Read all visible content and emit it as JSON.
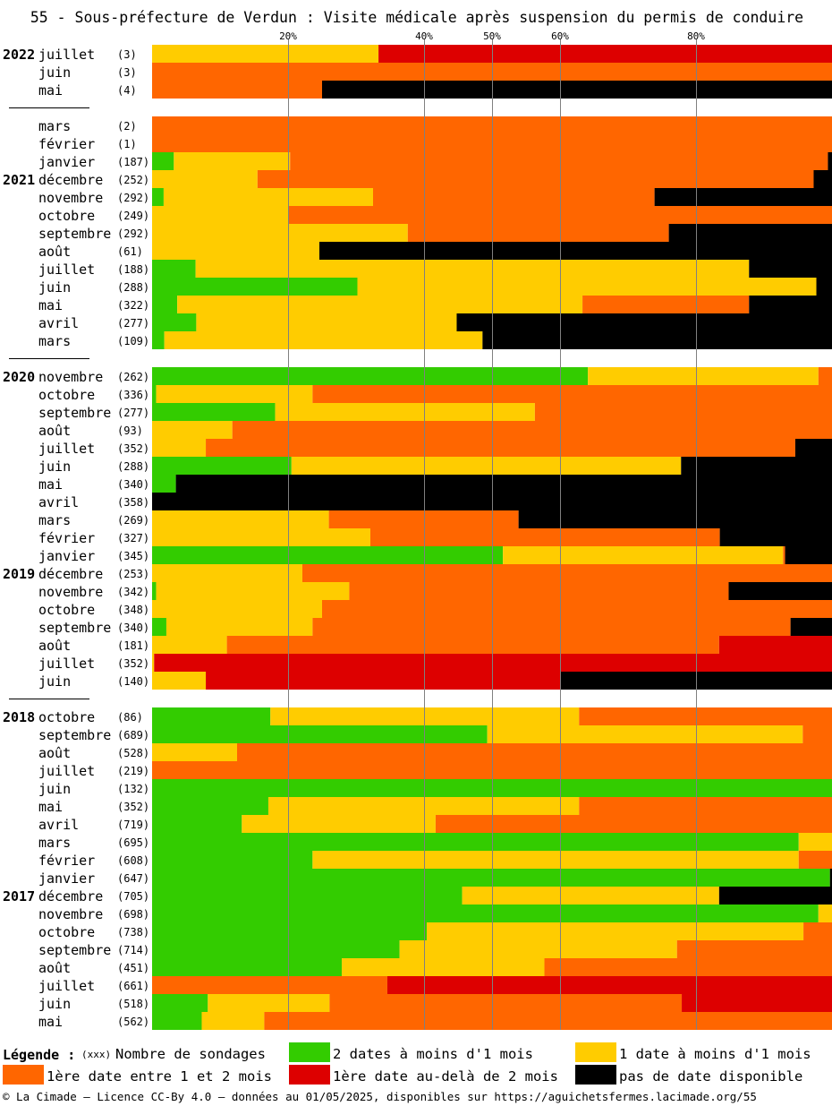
{
  "chart_data": {
    "type": "bar",
    "title": "55 - Sous-préfecture de Verdun : Visite médicale après suspension du permis de conduire",
    "orientation": "horizontal-stacked-100",
    "xlim": [
      0,
      100
    ],
    "xticks": [
      20,
      40,
      50,
      60,
      80
    ],
    "xtick_labels": [
      "20%",
      "40%",
      "50%",
      "60%",
      "80%"
    ],
    "grid": true,
    "series": [
      {
        "key": "green",
        "name": "2 dates à moins d'1 mois",
        "color": "#33cc00"
      },
      {
        "key": "yellow",
        "name": "1 date à moins d'1 mois",
        "color": "#ffcc00"
      },
      {
        "key": "orange",
        "name": "1ère date entre 1 et 2 mois",
        "color": "#ff6600"
      },
      {
        "key": "red",
        "name": "1ère date au-delà de 2 mois",
        "color": "#dd0000"
      },
      {
        "key": "black",
        "name": "pas de date disponible",
        "color": "#000000"
      }
    ],
    "rows": [
      {
        "year": "2022",
        "month": "juillet",
        "count": "(3)",
        "values": [
          0,
          33.3,
          0,
          66.7,
          0
        ]
      },
      {
        "month": "juin",
        "count": "(3)",
        "values": [
          0,
          0,
          100,
          0,
          0
        ]
      },
      {
        "month": "mai",
        "count": "(4)",
        "values": [
          0,
          0,
          25,
          0,
          75
        ]
      },
      {
        "separator": true
      },
      {
        "month": "mars",
        "count": "(2)",
        "values": [
          0,
          0,
          100,
          0,
          0
        ]
      },
      {
        "month": "février",
        "count": "(1)",
        "values": [
          0,
          0,
          100,
          0,
          0
        ]
      },
      {
        "month": "janvier",
        "count": "(187)",
        "values": [
          3.2,
          17.1,
          79.1,
          0,
          0.6
        ]
      },
      {
        "year": "2021",
        "month": "décembre",
        "count": "(252)",
        "values": [
          0,
          15.5,
          81.8,
          0,
          2.7
        ]
      },
      {
        "month": "novembre",
        "count": "(292)",
        "values": [
          1.7,
          30.8,
          41.4,
          0,
          26.1
        ]
      },
      {
        "month": "octobre",
        "count": "(249)",
        "values": [
          0,
          20,
          80,
          0,
          0
        ]
      },
      {
        "month": "septembre",
        "count": "(292)",
        "values": [
          0,
          37.6,
          38.4,
          0,
          24
        ]
      },
      {
        "month": "août",
        "count": "(61)",
        "values": [
          0,
          24.6,
          0,
          0,
          75.4
        ]
      },
      {
        "month": "juillet",
        "count": "(188)",
        "values": [
          6.4,
          81.4,
          0,
          0,
          12.2
        ]
      },
      {
        "month": "juin",
        "count": "(288)",
        "values": [
          30.2,
          67.5,
          0,
          0,
          2.3
        ]
      },
      {
        "month": "mai",
        "count": "(322)",
        "values": [
          3.7,
          59.6,
          24.5,
          0,
          12.2
        ]
      },
      {
        "month": "avril",
        "count": "(277)",
        "values": [
          6.5,
          38.3,
          0,
          0,
          55.2
        ]
      },
      {
        "month": "mars",
        "count": "(109)",
        "values": [
          1.8,
          46.8,
          0,
          0,
          51.4
        ]
      },
      {
        "separator": true
      },
      {
        "year": "2020",
        "month": "novembre",
        "count": "(262)",
        "values": [
          64.1,
          33.9,
          2,
          0,
          0
        ]
      },
      {
        "month": "octobre",
        "count": "(336)",
        "values": [
          0.6,
          23,
          76.4,
          0,
          0
        ]
      },
      {
        "month": "septembre",
        "count": "(277)",
        "values": [
          18.1,
          38.2,
          43.7,
          0,
          0
        ]
      },
      {
        "month": "août",
        "count": "(93)",
        "values": [
          0,
          11.8,
          88.2,
          0,
          0
        ]
      },
      {
        "month": "juillet",
        "count": "(352)",
        "values": [
          0,
          7.9,
          86.7,
          0,
          5.4
        ]
      },
      {
        "month": "juin",
        "count": "(288)",
        "values": [
          20.5,
          57.3,
          0,
          0,
          22.2
        ]
      },
      {
        "month": "mai",
        "count": "(340)",
        "values": [
          3.5,
          0,
          0,
          0,
          96.5
        ]
      },
      {
        "month": "avril",
        "count": "(358)",
        "values": [
          0,
          0,
          0,
          0,
          100
        ]
      },
      {
        "month": "mars",
        "count": "(269)",
        "values": [
          0,
          26,
          27.9,
          0,
          46.1
        ]
      },
      {
        "month": "février",
        "count": "(327)",
        "values": [
          0,
          32.1,
          51.4,
          0,
          16.5
        ]
      },
      {
        "month": "janvier",
        "count": "(345)",
        "values": [
          51.6,
          41.2,
          0.3,
          0,
          6.9
        ]
      },
      {
        "year": "2019",
        "month": "décembre",
        "count": "(253)",
        "values": [
          0,
          22.1,
          77.9,
          0,
          0
        ]
      },
      {
        "month": "novembre",
        "count": "(342)",
        "values": [
          0.6,
          28.4,
          55.8,
          0,
          15.2
        ]
      },
      {
        "month": "octobre",
        "count": "(348)",
        "values": [
          0,
          25,
          75,
          0,
          0
        ]
      },
      {
        "month": "septembre",
        "count": "(340)",
        "values": [
          2.1,
          21.5,
          70.3,
          0,
          6.1
        ]
      },
      {
        "month": "août",
        "count": "(181)",
        "values": [
          0,
          11,
          72.4,
          16.6,
          0
        ]
      },
      {
        "month": "juillet",
        "count": "(352)",
        "values": [
          0,
          0.3,
          0,
          99.7,
          0
        ]
      },
      {
        "month": "juin",
        "count": "(140)",
        "values": [
          0,
          7.9,
          0,
          52.1,
          40
        ]
      },
      {
        "separator": true
      },
      {
        "year": "2018",
        "month": "octobre",
        "count": "(86)",
        "values": [
          17.4,
          45.4,
          37.2,
          0,
          0
        ]
      },
      {
        "month": "septembre",
        "count": "(689)",
        "values": [
          49.3,
          46.4,
          4.3,
          0,
          0
        ]
      },
      {
        "month": "août",
        "count": "(528)",
        "values": [
          0,
          12.5,
          87.5,
          0,
          0
        ]
      },
      {
        "month": "juillet",
        "count": "(219)",
        "values": [
          0,
          0,
          100,
          0,
          0
        ]
      },
      {
        "month": "juin",
        "count": "(132)",
        "values": [
          100,
          0,
          0,
          0,
          0
        ]
      },
      {
        "month": "mai",
        "count": "(352)",
        "values": [
          17.1,
          45.7,
          37.2,
          0,
          0
        ]
      },
      {
        "month": "avril",
        "count": "(719)",
        "values": [
          13.2,
          28.5,
          58.3,
          0,
          0
        ]
      },
      {
        "month": "mars",
        "count": "(695)",
        "values": [
          95.1,
          4.9,
          0,
          0,
          0
        ]
      },
      {
        "month": "février",
        "count": "(608)",
        "values": [
          23.6,
          71.5,
          4.9,
          0,
          0
        ]
      },
      {
        "month": "janvier",
        "count": "(647)",
        "values": [
          99.7,
          0,
          0,
          0,
          0.3
        ]
      },
      {
        "year": "2017",
        "month": "décembre",
        "count": "(705)",
        "values": [
          45.6,
          37.8,
          0,
          0,
          16.6
        ]
      },
      {
        "month": "novembre",
        "count": "(698)",
        "values": [
          98,
          2,
          0,
          0,
          0
        ]
      },
      {
        "month": "octobre",
        "count": "(738)",
        "values": [
          40.4,
          55.4,
          4.2,
          0,
          0
        ]
      },
      {
        "month": "septembre",
        "count": "(714)",
        "values": [
          36.4,
          40.8,
          22.8,
          0,
          0
        ]
      },
      {
        "month": "août",
        "count": "(451)",
        "values": [
          27.9,
          29.8,
          42.3,
          0,
          0
        ]
      },
      {
        "month": "juillet",
        "count": "(661)",
        "values": [
          0,
          0,
          34.6,
          65.4,
          0
        ]
      },
      {
        "month": "juin",
        "count": "(518)",
        "values": [
          8.2,
          17.9,
          51.8,
          22.1,
          0
        ]
      },
      {
        "month": "mai",
        "count": "(562)",
        "values": [
          7.3,
          9.2,
          83.5,
          0,
          0
        ]
      }
    ]
  },
  "legend": {
    "title": "Légende :",
    "count_token": "(xxx)",
    "count_text": "Nombre de sondages"
  },
  "footer": "© La Cimade – Licence CC-By 4.0 – données au 01/05/2025, disponibles sur https://aguichetsfermes.lacimade.org/55"
}
